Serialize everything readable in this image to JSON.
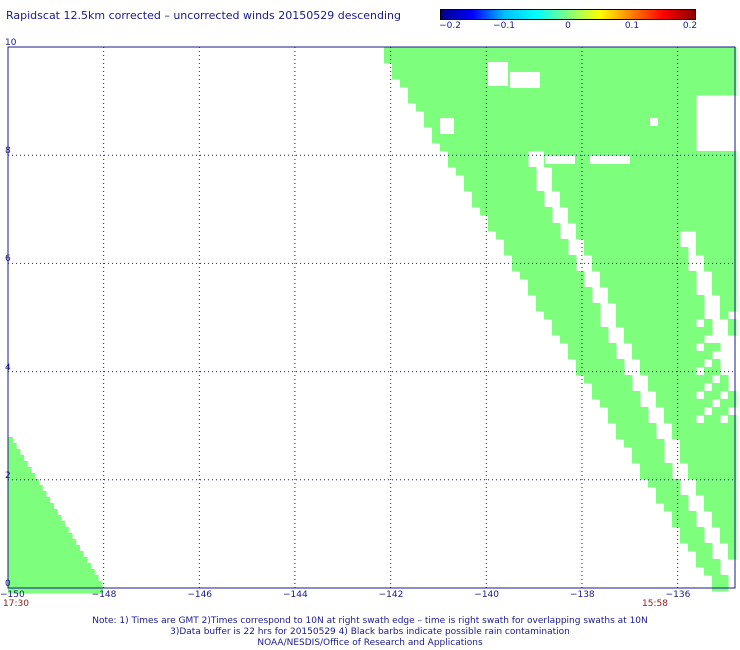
{
  "header": {
    "title": "Rapidscat 12.5km corrected – uncorrected winds 20150529 descending"
  },
  "colorbar": {
    "ticks": [
      "−0.2",
      "−0.1",
      "0",
      "0.1",
      "0.2"
    ],
    "tick_values": [
      -0.2,
      -0.1,
      0,
      0.1,
      0.2
    ]
  },
  "axes": {
    "lat_labels": [
      "10",
      "8",
      "6",
      "4",
      "2",
      "0"
    ],
    "lat_values": [
      10,
      8,
      6,
      4,
      2,
      0
    ],
    "lon_labels": [
      "−150",
      "−148",
      "−146",
      "−144",
      "−142",
      "−140",
      "−138",
      "−136"
    ],
    "lon_values": [
      -150,
      -148,
      -146,
      -144,
      -142,
      -140,
      -138,
      -136
    ]
  },
  "times": {
    "left": "17:30",
    "right": "15:58"
  },
  "colors": {
    "swath": "#7dff7d",
    "grid": "#1a1a8c"
  },
  "notes": [
    "Note: 1) Times are GMT 2)Times correspond to 10N at right swath edge – time is right swath for overlapping swaths at 10N",
    "3)Data buffer is 22 hrs for 20150529 4) Black barbs indicate possible rain contamination",
    "NOAA/NESDIS/Office of Research and Applications"
  ]
}
